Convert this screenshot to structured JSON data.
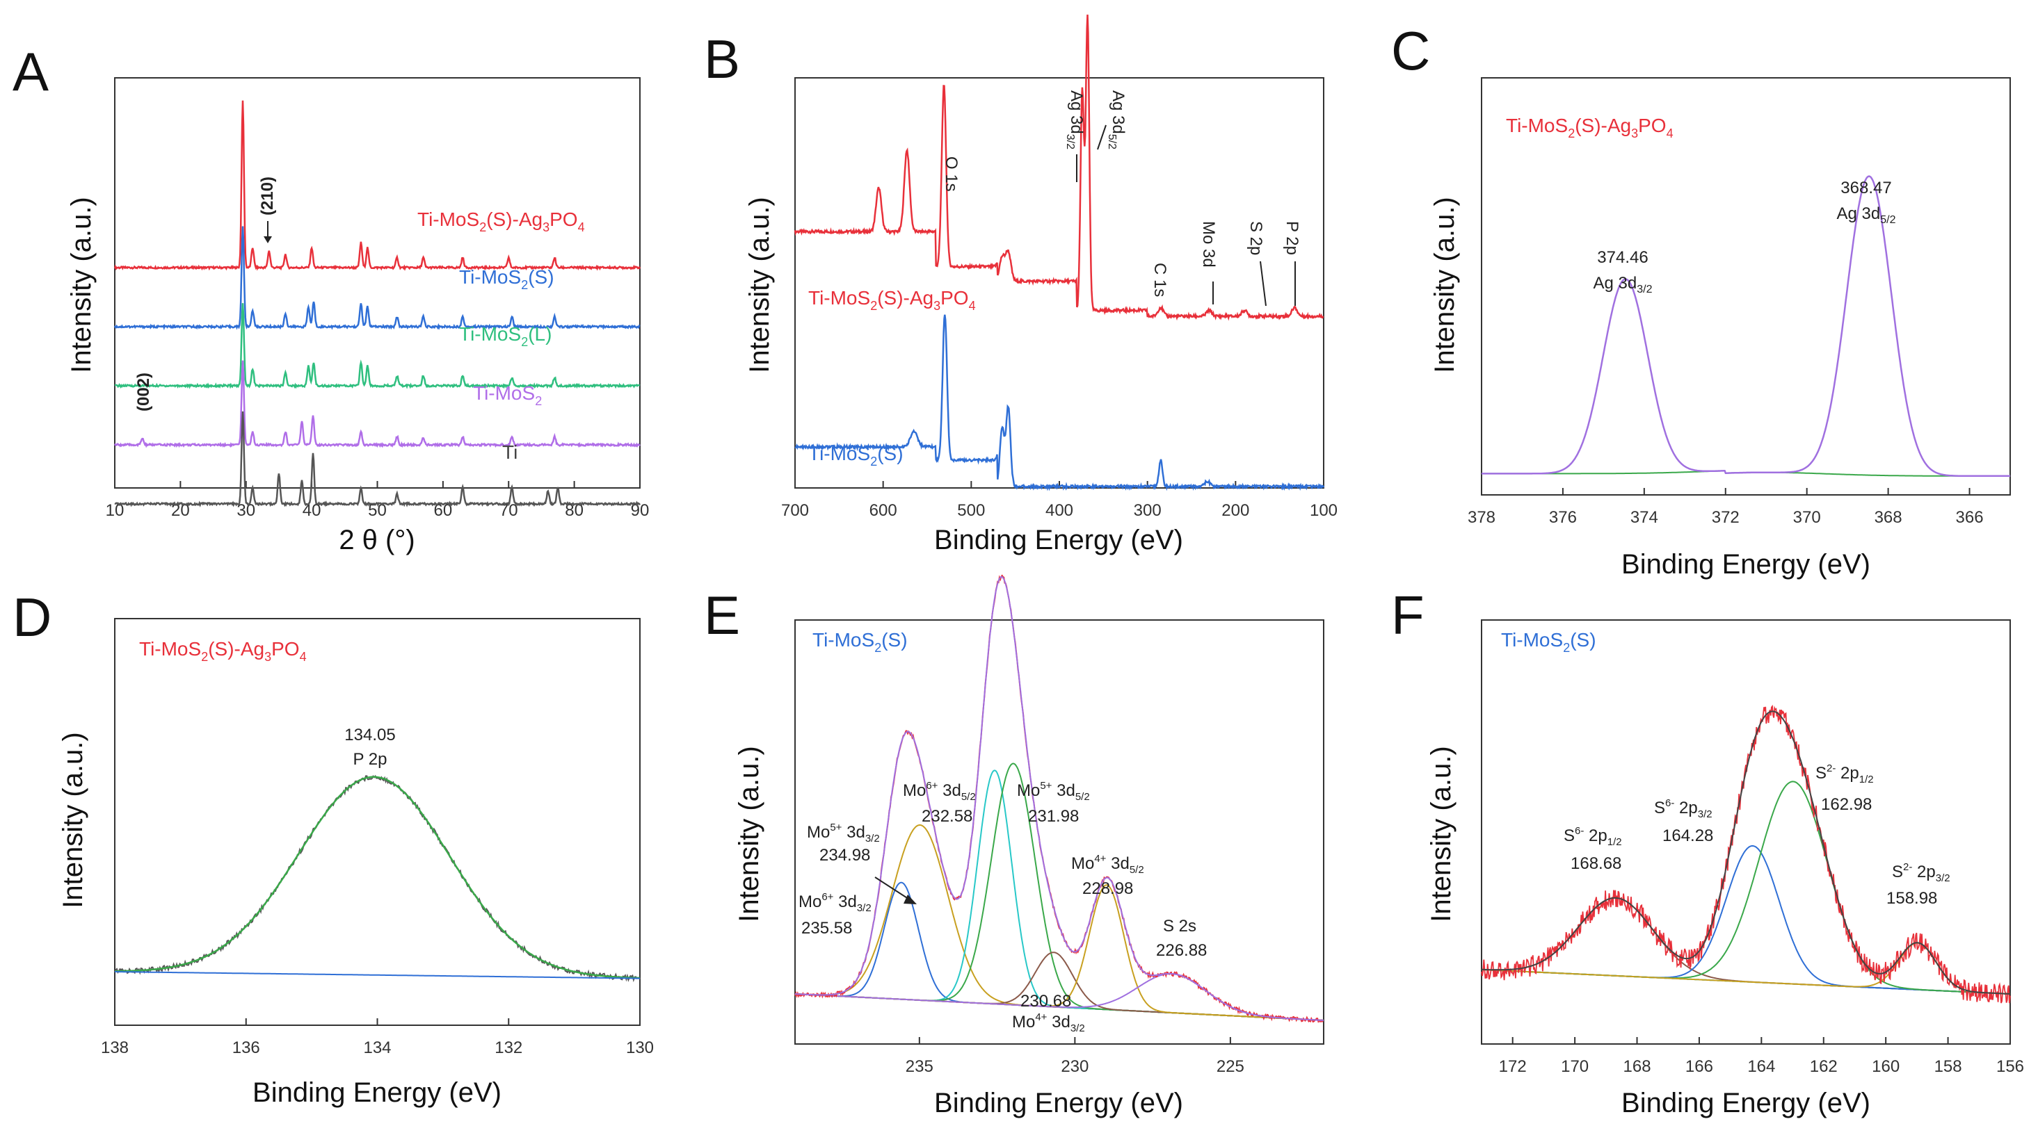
{
  "chart_data": [
    {
      "panel": "A",
      "type": "line",
      "title": "",
      "xlabel": "2 θ (°)",
      "ylabel": "Intensity (a.u.)",
      "xlim": [
        10,
        90
      ],
      "xticks": [
        10,
        20,
        30,
        40,
        50,
        60,
        70,
        80,
        90
      ],
      "series": [
        {
          "name": "Ti-MoS2(S)-Ag3PO4",
          "color": "#e8303a",
          "offset": 4,
          "peaks": [
            [
              29.5,
              1.0
            ],
            [
              31,
              0.12
            ],
            [
              33.5,
              0.1
            ],
            [
              36,
              0.08
            ],
            [
              40,
              0.12
            ],
            [
              47.5,
              0.15
            ],
            [
              48.5,
              0.12
            ],
            [
              53,
              0.06
            ],
            [
              57,
              0.06
            ],
            [
              63,
              0.06
            ],
            [
              70,
              0.06
            ],
            [
              77,
              0.06
            ]
          ]
        },
        {
          "name": "Ti-MoS2(S)",
          "color": "#2f6fd6",
          "offset": 3,
          "peaks": [
            [
              29.5,
              0.6
            ],
            [
              31,
              0.1
            ],
            [
              36,
              0.08
            ],
            [
              39.5,
              0.12
            ],
            [
              40.3,
              0.15
            ],
            [
              47.5,
              0.14
            ],
            [
              48.5,
              0.12
            ],
            [
              53,
              0.06
            ],
            [
              57,
              0.06
            ],
            [
              63,
              0.06
            ],
            [
              70.5,
              0.06
            ],
            [
              77,
              0.06
            ]
          ]
        },
        {
          "name": "Ti-MoS2(L)",
          "color": "#2fbf7f",
          "offset": 2,
          "peaks": [
            [
              29.5,
              0.5
            ],
            [
              31,
              0.1
            ],
            [
              36,
              0.08
            ],
            [
              39.5,
              0.12
            ],
            [
              40.3,
              0.14
            ],
            [
              47.5,
              0.14
            ],
            [
              48.5,
              0.12
            ],
            [
              53,
              0.06
            ],
            [
              57,
              0.06
            ],
            [
              63,
              0.06
            ],
            [
              70.5,
              0.05
            ],
            [
              77,
              0.05
            ]
          ]
        },
        {
          "name": "Ti-MoS2",
          "color": "#b06ee8",
          "offset": 1,
          "peaks": [
            [
              14.2,
              0.04
            ],
            [
              29.5,
              0.5
            ],
            [
              31,
              0.08
            ],
            [
              36,
              0.08
            ],
            [
              38.5,
              0.14
            ],
            [
              40.2,
              0.18
            ],
            [
              47.5,
              0.08
            ],
            [
              53,
              0.05
            ],
            [
              57,
              0.04
            ],
            [
              63,
              0.05
            ],
            [
              70.5,
              0.05
            ],
            [
              77,
              0.05
            ]
          ]
        },
        {
          "name": "Ti",
          "color": "#555555",
          "offset": 0,
          "peaks": [
            [
              29.5,
              0.55
            ],
            [
              31,
              0.1
            ],
            [
              35,
              0.18
            ],
            [
              38.5,
              0.14
            ],
            [
              40.2,
              0.3
            ],
            [
              47.5,
              0.1
            ],
            [
              53,
              0.06
            ],
            [
              63,
              0.1
            ],
            [
              70.5,
              0.1
            ],
            [
              76,
              0.08
            ],
            [
              77.5,
              0.1
            ]
          ]
        }
      ],
      "annotations": [
        "(210)",
        "(002)"
      ]
    },
    {
      "panel": "B",
      "type": "line",
      "xlabel": "Binding Energy (eV)",
      "ylabel": "Intensity (a.u.)",
      "xlim": [
        700,
        100
      ],
      "xticks": [
        700,
        600,
        500,
        400,
        300,
        200,
        100
      ],
      "series": [
        {
          "name": "Ti-MoS2(S)-Ag3PO4",
          "color": "#e8303a"
        },
        {
          "name": "Ti-MoS2(S)",
          "color": "#2f6fd6"
        }
      ],
      "annotations": [
        "O 1s",
        "Ag 3d3/2",
        "Ag 3d5/2",
        "C 1s",
        "Mo 3d",
        "S 2p",
        "P 2p"
      ]
    },
    {
      "panel": "C",
      "type": "line",
      "xlabel": "Binding Energy (eV)",
      "ylabel": "Intensity (a.u.)",
      "xlim": [
        378,
        365
      ],
      "xticks": [
        378,
        376,
        374,
        372,
        370,
        368,
        366
      ],
      "sample": "Ti-MoS2(S)-Ag3PO4",
      "peaks": [
        {
          "center": 374.46,
          "label": "Ag 3d3/2",
          "value_text": "374.46"
        },
        {
          "center": 368.47,
          "label": "Ag 3d5/2",
          "value_text": "368.47"
        }
      ]
    },
    {
      "panel": "D",
      "type": "line",
      "xlabel": "Binding Energy (eV)",
      "ylabel": "Intensity (a.u.)",
      "xlim": [
        138,
        130
      ],
      "xticks": [
        138,
        136,
        134,
        132,
        130
      ],
      "sample": "Ti-MoS2(S)-Ag3PO4",
      "peaks": [
        {
          "center": 134.05,
          "label": "P 2p",
          "value_text": "134.05"
        }
      ]
    },
    {
      "panel": "E",
      "type": "line",
      "xlabel": "Binding Energy (eV)",
      "ylabel": "Intensity (a.u.)",
      "xlim": [
        239,
        222
      ],
      "xticks": [
        235,
        230,
        225
      ],
      "sample": "Ti-MoS2(S)",
      "peaks": [
        {
          "center": 235.58,
          "label": "Mo6+ 3d3/2",
          "value_text": "235.58"
        },
        {
          "center": 234.98,
          "label": "Mo5+ 3d3/2",
          "value_text": "234.98"
        },
        {
          "center": 232.58,
          "label": "Mo6+ 3d5/2",
          "value_text": "232.58"
        },
        {
          "center": 231.98,
          "label": "Mo5+ 3d5/2",
          "value_text": "231.98"
        },
        {
          "center": 230.68,
          "label": "Mo4+ 3d3/2",
          "value_text": "230.68"
        },
        {
          "center": 228.98,
          "label": "Mo4+ 3d5/2",
          "value_text": "228.98"
        },
        {
          "center": 226.88,
          "label": "S 2s",
          "value_text": "226.88"
        }
      ]
    },
    {
      "panel": "F",
      "type": "line",
      "xlabel": "Binding Energy (eV)",
      "ylabel": "Intensity (a.u.)",
      "xlim": [
        173,
        156
      ],
      "xticks": [
        172,
        170,
        168,
        166,
        164,
        162,
        160,
        158,
        156
      ],
      "sample": "Ti-MoS2(S)",
      "peaks": [
        {
          "center": 168.68,
          "label": "S6- 2p1/2",
          "value_text": "168.68"
        },
        {
          "center": 164.28,
          "label": "S6- 2p3/2",
          "value_text": "164.28"
        },
        {
          "center": 162.98,
          "label": "S2- 2p1/2",
          "value_text": "162.98"
        },
        {
          "center": 158.98,
          "label": "S2- 2p3/2",
          "value_text": "158.98"
        }
      ]
    }
  ],
  "panels": {
    "a": {
      "letter": "A",
      "xlabel": "2 θ (°)",
      "ylabel": "Intensity (a.u.)",
      "ticks": [
        "10",
        "20",
        "30",
        "40",
        "50",
        "60",
        "70",
        "80",
        "90"
      ],
      "labels": {
        "s1": "Ti-MoS",
        "s2a": "Ti-MoS",
        "s2b": "(",
        "s2c": "S",
        "s2d": ")",
        "s3": "Ti-MoS",
        "s3b": "(L)",
        "s4": "Ti-MoS",
        "s5": "Ti",
        "s1tail": "(S)-Ag",
        "s1po": "PO",
        "sub2": "2",
        "sub3": "3",
        "sub4": "4",
        "hkl210": "(210)",
        "hkl002": "(002)"
      }
    },
    "b": {
      "letter": "B",
      "xlabel": "Binding Energy (eV)",
      "ylabel": "Intensity (a.u.)",
      "ticks": [
        "700",
        "600",
        "500",
        "400",
        "300",
        "200",
        "100"
      ],
      "o1s": "O 1s",
      "ag3d": "Ag 3d",
      "sub32": "3/2",
      "sub52": "5/2",
      "c1s": "C 1s",
      "mo3d": "Mo 3d",
      "s2p": "S 2p",
      "p2p": "P 2p",
      "red_label": "Ti-MoS",
      "red_tail": "(S)-Ag",
      "red_po": "PO",
      "blue_label": "Ti-MoS",
      "blue_tail": "(S)"
    },
    "c": {
      "letter": "C",
      "xlabel": "Binding Energy (eV)",
      "ylabel": "Intensity (a.u.)",
      "ticks": [
        "378",
        "376",
        "374",
        "372",
        "370",
        "368",
        "366"
      ],
      "sample_a": "Ti-MoS",
      "sample_b": "(S)-Ag",
      "sample_c": "PO",
      "p1v": "374.46",
      "p1l": "Ag 3d",
      "p2v": "368.47",
      "p2l": "Ag 3d",
      "sub32": "3/2",
      "sub52": "5/2"
    },
    "d": {
      "letter": "D",
      "xlabel": "Binding Energy (eV)",
      "ylabel": "Intensity (a.u.)",
      "ticks": [
        "138",
        "136",
        "134",
        "132",
        "130"
      ],
      "sample_a": "Ti-MoS",
      "sample_b": "(S)-Ag",
      "sample_c": "PO",
      "p1v": "134.05",
      "p1l": "P 2p"
    },
    "e": {
      "letter": "E",
      "xlabel": "Binding Energy (eV)",
      "ylabel": "Intensity (a.u.)",
      "ticks": [
        "235",
        "230",
        "225"
      ],
      "sample_a": "Ti-MoS",
      "sample_b": "(S)",
      "mo": "Mo",
      "sup6": "6+",
      "sup5": "5+",
      "sup4": "4+",
      "d32": " 3d",
      "s2s": "S 2s",
      "v1": "234.98",
      "v2": "232.58",
      "v3": "231.98",
      "v4": "228.98",
      "v5": "235.58",
      "v6": "226.88",
      "v7": "230.68"
    },
    "f": {
      "letter": "F",
      "xlabel": "Binding Energy (eV)",
      "ylabel": "Intensity (a.u.)",
      "ticks": [
        "172",
        "170",
        "168",
        "166",
        "164",
        "162",
        "160",
        "158",
        "156"
      ],
      "sample_a": "Ti-MoS",
      "sample_b": "(S)",
      "s": "S",
      "sup6": "6-",
      "sup2": "2-",
      "p": " 2p",
      "sub12": "1/2",
      "sub32": "3/2",
      "v1": "168.68",
      "v2": "164.28",
      "v3": "162.98",
      "v4": "158.98"
    }
  },
  "colors": {
    "red": "#e8303a",
    "blue": "#2f6fd6",
    "green": "#2fbf7f",
    "purple": "#b06ee8",
    "gray": "#555555",
    "violet": "#a070e0",
    "orange": "#f08a24",
    "olive": "#c8a020",
    "teal": "#28c8c8",
    "brown": "#8b5a4a",
    "dkgreen": "#3aa84a"
  }
}
